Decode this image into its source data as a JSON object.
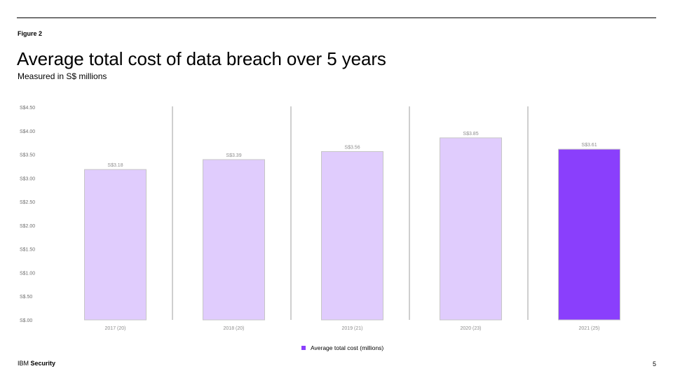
{
  "header": {
    "figure_label": "Figure 2",
    "title": "Average total cost of data breach over 5 years",
    "subtitle": "Measured in S$ millions"
  },
  "chart_data": {
    "type": "bar",
    "categories": [
      "2017 (20)",
      "2018 (20)",
      "2019 (21)",
      "2020 (23)",
      "2021 (25)"
    ],
    "series": [
      {
        "name": "Average total cost (millions)",
        "values": [
          3.18,
          3.39,
          3.56,
          3.85,
          3.61
        ]
      }
    ],
    "data_labels": [
      "S$3.18",
      "S$3.39",
      "S$3.56",
      "S$3.85",
      "S$3.61"
    ],
    "y_ticks": [
      0,
      0.5,
      1.0,
      1.5,
      2.0,
      2.5,
      3.0,
      3.5,
      4.0,
      4.5
    ],
    "y_tick_labels": [
      "S$.00",
      "S$.50",
      "S$1.00",
      "S$1.50",
      "S$2.00",
      "S$2.50",
      "S$3.00",
      "S$3.50",
      "S$4.00",
      "S$4.50"
    ],
    "ylim": [
      0,
      4.5
    ],
    "xlabel": "",
    "ylabel": "",
    "legend_position": "bottom",
    "colors": {
      "bar": "#e0ccfd",
      "highlight_bar": "#8a3ffc",
      "bar_border": "#c6c6c6",
      "separator": "#cfcfcf"
    },
    "highlight_index": 4
  },
  "footer": {
    "brand_prefix": "IBM ",
    "brand_bold": "Security",
    "page_number": "5"
  }
}
